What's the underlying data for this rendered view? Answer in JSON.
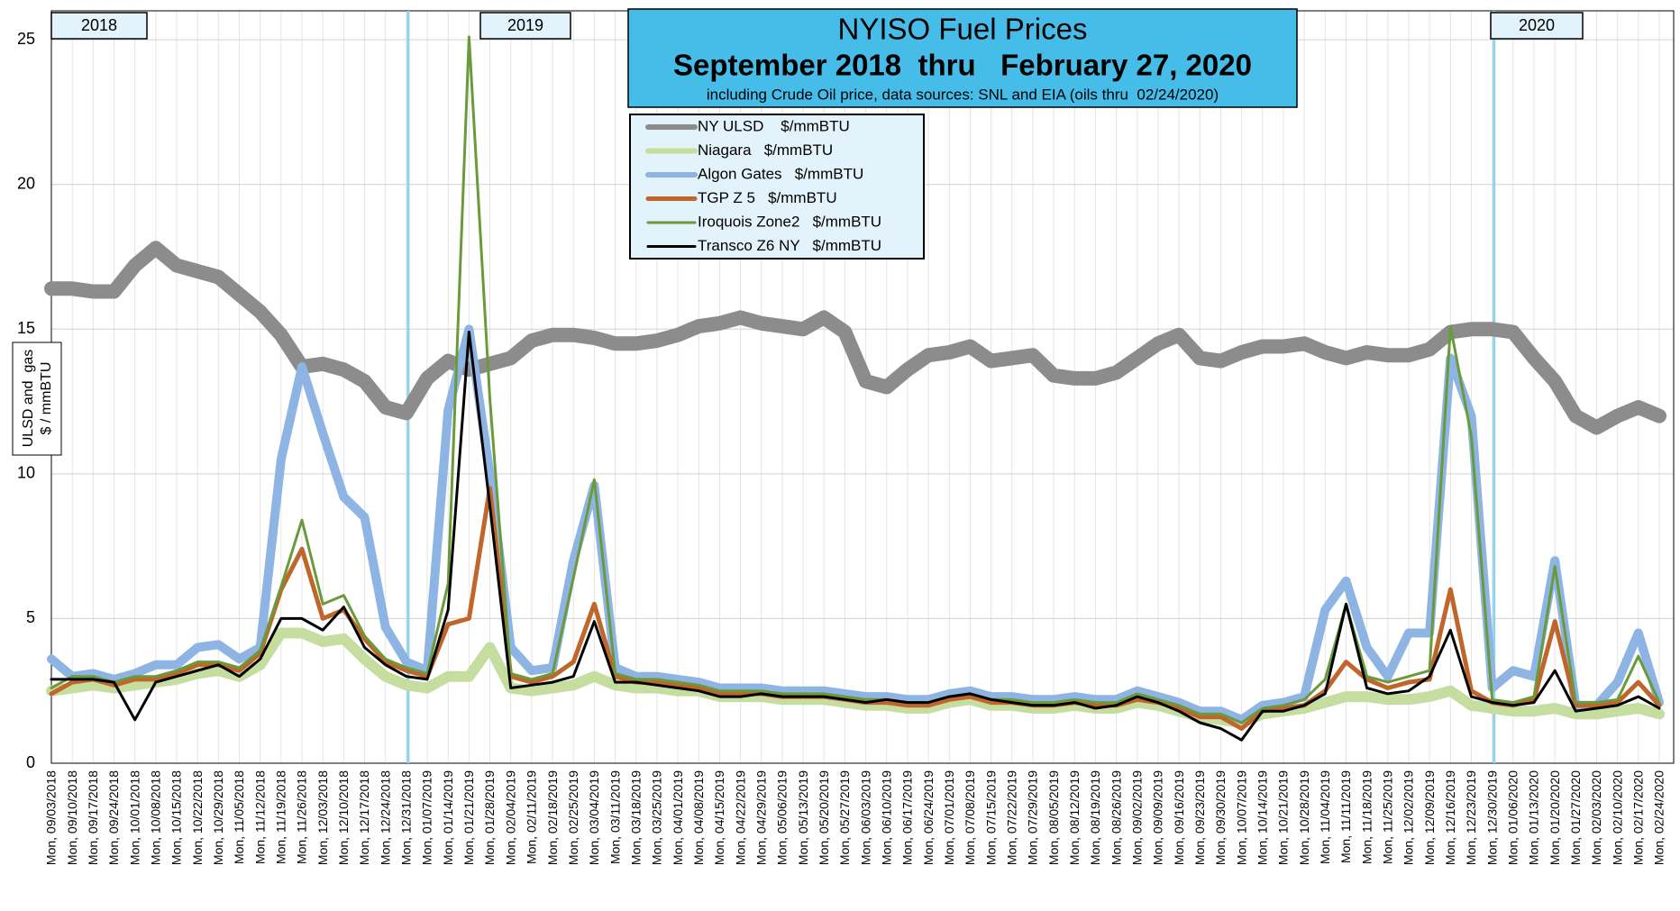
{
  "chart_data": {
    "type": "line",
    "title": "NYISO Fuel Prices",
    "subtitle": "September 2018  thru   February 27, 2020",
    "note": "including Crude Oil price, data sources: SNL and EIA (oils thru  02/24/2020)",
    "ylabel": [
      "ULSD and  gas",
      "$ / mmBTU"
    ],
    "annotations": [
      "2018",
      "2019",
      "2020"
    ],
    "ylim": [
      0,
      26
    ],
    "yticks": [
      0,
      5,
      10,
      15,
      20,
      25
    ],
    "grid": true,
    "categories": [
      "Mon, 09/03/2018",
      "Mon, 09/10/2018",
      "Mon, 09/17/2018",
      "Mon, 09/24/2018",
      "Mon, 10/01/2018",
      "Mon, 10/08/2018",
      "Mon, 10/15/2018",
      "Mon, 10/22/2018",
      "Mon, 10/29/2018",
      "Mon, 11/05/2018",
      "Mon, 11/12/2018",
      "Mon, 11/19/2018",
      "Mon, 11/26/2018",
      "Mon, 12/03/2018",
      "Mon, 12/10/2018",
      "Mon, 12/17/2018",
      "Mon, 12/24/2018",
      "Mon, 12/31/2018",
      "Mon, 01/07/2019",
      "Mon, 01/14/2019",
      "Mon, 01/21/2019",
      "Mon, 01/28/2019",
      "Mon, 02/04/2019",
      "Mon, 02/11/2019",
      "Mon, 02/18/2019",
      "Mon, 02/25/2019",
      "Mon, 03/04/2019",
      "Mon, 03/11/2019",
      "Mon, 03/18/2019",
      "Mon, 03/25/2019",
      "Mon, 04/01/2019",
      "Mon, 04/08/2019",
      "Mon, 04/15/2019",
      "Mon, 04/22/2019",
      "Mon, 04/29/2019",
      "Mon, 05/06/2019",
      "Mon, 05/13/2019",
      "Mon, 05/20/2019",
      "Mon, 05/27/2019",
      "Mon, 06/03/2019",
      "Mon, 06/10/2019",
      "Mon, 06/17/2019",
      "Mon, 06/24/2019",
      "Mon, 07/01/2019",
      "Mon, 07/08/2019",
      "Mon, 07/15/2019",
      "Mon, 07/22/2019",
      "Mon, 07/29/2019",
      "Mon, 08/05/2019",
      "Mon, 08/12/2019",
      "Mon, 08/19/2019",
      "Mon, 08/26/2019",
      "Mon, 09/02/2019",
      "Mon, 09/09/2019",
      "Mon, 09/16/2019",
      "Mon, 09/23/2019",
      "Mon, 09/30/2019",
      "Mon, 10/07/2019",
      "Mon, 10/14/2019",
      "Mon, 10/21/2019",
      "Mon, 10/28/2019",
      "Mon, 11/04/2019",
      "Mon, 11/11/2019",
      "Mon, 11/18/2019",
      "Mon, 11/25/2019",
      "Mon, 12/02/2019",
      "Mon, 12/09/2019",
      "Mon, 12/16/2019",
      "Mon, 12/23/2019",
      "Mon, 12/30/2019",
      "Mon, 01/06/2020",
      "Mon, 01/13/2020",
      "Mon, 01/20/2020",
      "Mon, 01/27/2020",
      "Mon, 02/03/2020",
      "Mon, 02/10/2020",
      "Mon, 02/17/2020",
      "Mon, 02/24/2020"
    ],
    "series": [
      {
        "name": "NY ULSD    $/mmBTU",
        "color": "#8c8c8c",
        "values": [
          16.4,
          16.4,
          16.3,
          16.3,
          17.2,
          17.8,
          17.2,
          17.0,
          16.8,
          16.2,
          15.6,
          14.8,
          13.7,
          13.8,
          13.6,
          13.2,
          12.3,
          12.1,
          13.3,
          13.9,
          13.6,
          13.8,
          14.0,
          14.6,
          14.8,
          14.8,
          14.7,
          14.5,
          14.5,
          14.6,
          14.8,
          15.1,
          15.2,
          15.4,
          15.2,
          15.1,
          15.0,
          15.4,
          14.9,
          13.2,
          13.0,
          13.6,
          14.1,
          14.2,
          14.4,
          13.9,
          14.0,
          14.1,
          13.4,
          13.3,
          13.3,
          13.5,
          14.0,
          14.5,
          14.8,
          14.0,
          13.9,
          14.2,
          14.4,
          14.4,
          14.5,
          14.2,
          14.0,
          14.2,
          14.1,
          14.1,
          14.3,
          14.9,
          15.0,
          15.0,
          14.9,
          14.0,
          13.2,
          12.0,
          11.6,
          12.0,
          12.3,
          12.0
        ]
      },
      {
        "name": "Niagara   $/mmBTU",
        "color": "#c5dea0",
        "values": [
          2.5,
          2.6,
          2.7,
          2.6,
          2.7,
          2.8,
          2.9,
          3.1,
          3.2,
          3.0,
          3.4,
          4.5,
          4.5,
          4.2,
          4.3,
          3.6,
          3.0,
          2.7,
          2.6,
          3.0,
          3.0,
          4.0,
          2.6,
          2.5,
          2.6,
          2.7,
          3.0,
          2.7,
          2.6,
          2.6,
          2.5,
          2.5,
          2.3,
          2.3,
          2.3,
          2.2,
          2.2,
          2.2,
          2.1,
          2.0,
          2.0,
          1.9,
          1.9,
          2.1,
          2.2,
          2.0,
          2.0,
          1.9,
          1.9,
          2.0,
          1.9,
          1.9,
          2.1,
          2.0,
          1.8,
          1.6,
          1.5,
          1.4,
          1.7,
          1.8,
          1.9,
          2.1,
          2.3,
          2.3,
          2.2,
          2.2,
          2.3,
          2.5,
          2.0,
          1.9,
          1.8,
          1.8,
          1.9,
          1.7,
          1.7,
          1.8,
          1.9,
          1.7
        ]
      },
      {
        "name": "Algon Gates   $/mmBTU",
        "color": "#8eb4e3",
        "values": [
          3.6,
          3.0,
          3.1,
          2.9,
          3.1,
          3.4,
          3.4,
          4.0,
          4.1,
          3.6,
          4.0,
          10.5,
          13.7,
          11.4,
          9.2,
          8.5,
          4.7,
          3.5,
          3.2,
          12.2,
          15.0,
          10.0,
          4.0,
          3.2,
          3.3,
          7.0,
          9.6,
          3.3,
          3.0,
          3.0,
          2.9,
          2.8,
          2.6,
          2.6,
          2.6,
          2.5,
          2.5,
          2.5,
          2.4,
          2.3,
          2.3,
          2.2,
          2.2,
          2.4,
          2.5,
          2.3,
          2.3,
          2.2,
          2.2,
          2.3,
          2.2,
          2.2,
          2.5,
          2.3,
          2.1,
          1.8,
          1.8,
          1.5,
          2.0,
          2.1,
          2.3,
          5.3,
          6.3,
          4.0,
          3.0,
          4.5,
          4.5,
          14.0,
          12.0,
          2.6,
          3.2,
          3.0,
          7.0,
          2.0,
          2.0,
          2.8,
          4.5,
          2.1
        ]
      },
      {
        "name": "TGP Z 5   $/mmBTU",
        "color": "#c0662a",
        "values": [
          2.4,
          2.8,
          2.9,
          2.7,
          2.9,
          2.9,
          3.1,
          3.4,
          3.4,
          3.2,
          3.8,
          6.0,
          7.4,
          5.0,
          5.3,
          4.3,
          3.5,
          3.2,
          3.0,
          4.8,
          5.0,
          9.5,
          3.0,
          2.8,
          3.0,
          3.5,
          5.5,
          3.0,
          2.8,
          2.8,
          2.7,
          2.6,
          2.4,
          2.4,
          2.4,
          2.3,
          2.3,
          2.3,
          2.2,
          2.1,
          2.1,
          2.0,
          2.0,
          2.2,
          2.3,
          2.1,
          2.1,
          2.0,
          2.0,
          2.1,
          2.0,
          2.0,
          2.2,
          2.1,
          1.9,
          1.6,
          1.6,
          1.2,
          1.8,
          1.9,
          2.0,
          2.5,
          3.5,
          2.9,
          2.6,
          2.8,
          2.9,
          6.0,
          2.5,
          2.1,
          2.0,
          2.2,
          4.9,
          2.0,
          2.0,
          2.1,
          2.8,
          2.0
        ]
      },
      {
        "name": "Iroquois Zone2   $/mmBTU",
        "color": "#6a9a3a",
        "values": [
          2.6,
          3.0,
          3.0,
          2.8,
          3.0,
          3.0,
          3.2,
          3.5,
          3.5,
          3.3,
          3.9,
          6.1,
          8.4,
          5.5,
          5.8,
          4.4,
          3.6,
          3.3,
          3.1,
          6.2,
          25.1,
          12.6,
          3.1,
          2.9,
          3.1,
          6.4,
          9.8,
          3.1,
          2.9,
          2.9,
          2.8,
          2.7,
          2.5,
          2.5,
          2.5,
          2.4,
          2.4,
          2.4,
          2.3,
          2.2,
          2.2,
          2.1,
          2.1,
          2.3,
          2.4,
          2.2,
          2.2,
          2.1,
          2.1,
          2.2,
          2.1,
          2.1,
          2.4,
          2.2,
          2.0,
          1.7,
          1.7,
          1.4,
          1.9,
          2.0,
          2.2,
          2.9,
          5.5,
          3.0,
          2.8,
          3.0,
          3.2,
          15.1,
          11.3,
          2.2,
          2.1,
          2.3,
          6.8,
          2.1,
          2.1,
          2.2,
          3.7,
          2.1
        ]
      },
      {
        "name": "Transco Z6 NY   $/mmBTU",
        "color": "#000000",
        "values": [
          2.9,
          2.9,
          2.9,
          2.8,
          1.5,
          2.8,
          3.0,
          3.2,
          3.4,
          3.0,
          3.6,
          5.0,
          5.0,
          4.6,
          5.4,
          4.0,
          3.4,
          3.0,
          2.9,
          5.3,
          14.9,
          8.9,
          2.6,
          2.7,
          2.8,
          3.0,
          4.9,
          2.8,
          2.8,
          2.7,
          2.6,
          2.5,
          2.3,
          2.3,
          2.4,
          2.3,
          2.3,
          2.3,
          2.2,
          2.1,
          2.2,
          2.1,
          2.1,
          2.3,
          2.4,
          2.2,
          2.1,
          2.0,
          2.0,
          2.1,
          1.9,
          2.0,
          2.3,
          2.1,
          1.8,
          1.4,
          1.2,
          0.8,
          1.8,
          1.8,
          2.0,
          2.4,
          5.5,
          2.6,
          2.4,
          2.5,
          3.0,
          4.6,
          2.3,
          2.1,
          2.0,
          2.1,
          3.2,
          1.8,
          1.9,
          2.0,
          2.3,
          1.9
        ]
      }
    ]
  }
}
